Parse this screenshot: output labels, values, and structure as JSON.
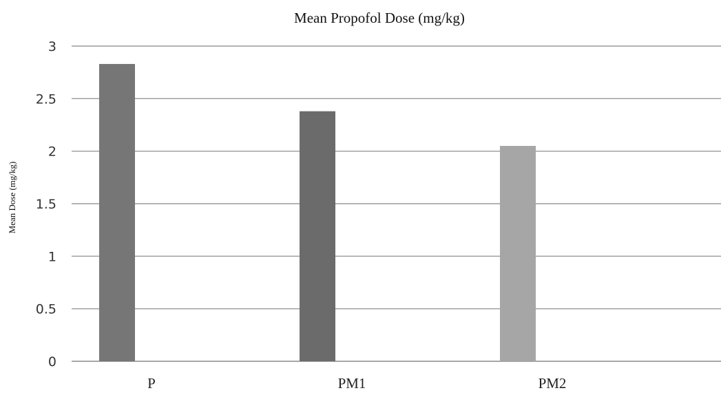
{
  "chart_data": {
    "type": "bar",
    "title": "Mean Propofol Dose (mg/kg)",
    "ylabel": "Mean Dose (mg/kg)",
    "xlabel": "",
    "categories": [
      "P",
      "PM1",
      "PM2"
    ],
    "values": [
      2.83,
      2.38,
      2.05
    ],
    "ylim": [
      0,
      3
    ],
    "yticks": [
      0,
      0.5,
      1,
      1.5,
      2,
      2.5,
      3
    ],
    "ytick_labels": [
      "0",
      "0.5",
      "1",
      "1.5",
      "2",
      "2.5",
      "3"
    ],
    "bar_colors": [
      "#767676",
      "#6b6b6b",
      "#a6a6a6"
    ],
    "grid": true,
    "legend": "none"
  }
}
